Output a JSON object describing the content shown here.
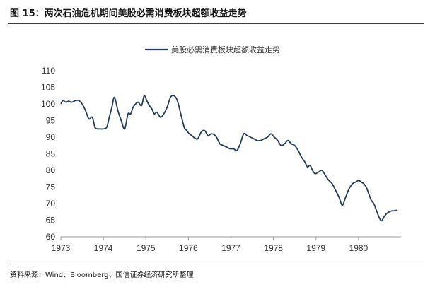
{
  "figure": {
    "title": "图 15：两次石油危机期间美股必需消费板块超额收益走势",
    "source": "资料来源：Wind、Bloomberg、国信证券经济研究所整理"
  },
  "colors": {
    "line": "#1f3b5a",
    "axis": "#999999",
    "rule": "#7a1f23"
  },
  "chart_data": {
    "type": "line",
    "title": "",
    "xlabel": "",
    "ylabel": "",
    "xlim": [
      1973,
      1981
    ],
    "ylim": [
      60,
      110
    ],
    "yticks": [
      110,
      105,
      100,
      95,
      90,
      85,
      80,
      75,
      70,
      65,
      60
    ],
    "xticks": [
      "1973",
      "1974",
      "1975",
      "1976",
      "1977",
      "1978",
      "1979",
      "1980"
    ],
    "grid": false,
    "legend_position": "top-center",
    "series": [
      {
        "name": "美股必需消费板块超额收益走势",
        "x": [
          1973.0,
          1973.05,
          1973.12,
          1973.18,
          1973.26,
          1973.34,
          1973.42,
          1973.5,
          1973.58,
          1973.66,
          1973.74,
          1973.8,
          1973.86,
          1973.92,
          1974.0,
          1974.08,
          1974.14,
          1974.2,
          1974.26,
          1974.34,
          1974.42,
          1974.5,
          1974.58,
          1974.64,
          1974.7,
          1974.76,
          1974.82,
          1974.9,
          1974.96,
          1975.02,
          1975.08,
          1975.14,
          1975.2,
          1975.26,
          1975.34,
          1975.42,
          1975.5,
          1975.58,
          1975.66,
          1975.74,
          1975.82,
          1975.9,
          1975.96,
          1976.02,
          1976.08,
          1976.14,
          1976.22,
          1976.3,
          1976.38,
          1976.46,
          1976.54,
          1976.6,
          1976.66,
          1976.74,
          1976.82,
          1976.9,
          1976.98,
          1977.06,
          1977.14,
          1977.22,
          1977.3,
          1977.38,
          1977.46,
          1977.54,
          1977.62,
          1977.7,
          1977.78,
          1977.86,
          1977.94,
          1978.02,
          1978.1,
          1978.18,
          1978.26,
          1978.34,
          1978.42,
          1978.5,
          1978.58,
          1978.66,
          1978.74,
          1978.8,
          1978.86,
          1978.92,
          1978.98,
          1979.06,
          1979.14,
          1979.22,
          1979.3,
          1979.38,
          1979.46,
          1979.54,
          1979.62,
          1979.7,
          1979.78,
          1979.86,
          1979.94,
          1980.0,
          1980.06,
          1980.12,
          1980.18,
          1980.24,
          1980.3,
          1980.36,
          1980.42,
          1980.48,
          1980.54,
          1980.6,
          1980.66,
          1980.72,
          1980.78,
          1980.82,
          1980.86,
          1980.9
        ],
        "y": [
          100,
          101,
          100.5,
          100.8,
          100.5,
          101,
          101,
          100,
          98,
          95.5,
          96,
          93,
          92.5,
          92.5,
          92.5,
          93,
          96,
          99,
          102,
          98,
          95,
          92.5,
          97,
          97,
          99,
          100,
          100.5,
          99.5,
          102.5,
          101,
          99.5,
          98.5,
          97,
          97.5,
          96,
          97,
          99,
          102,
          102.5,
          101,
          97,
          93,
          92,
          91,
          90.5,
          89.8,
          89.5,
          91.5,
          92,
          90.5,
          91,
          90.8,
          90,
          88,
          87.5,
          87,
          86.5,
          86.5,
          86,
          88,
          91,
          90.5,
          90,
          89.5,
          89,
          89,
          89.5,
          90,
          91,
          90,
          89,
          87.5,
          88,
          89,
          88,
          87.5,
          86,
          84,
          82.5,
          81,
          81.5,
          80,
          79,
          79.5,
          80,
          78.5,
          77,
          76,
          74,
          72,
          69.5,
          72,
          74.5,
          76,
          76.5,
          77,
          76.5,
          76,
          75,
          73,
          71,
          70,
          68,
          66,
          64.8,
          66,
          67,
          67.5,
          67.8,
          67.8,
          67.9,
          68
        ]
      }
    ]
  }
}
